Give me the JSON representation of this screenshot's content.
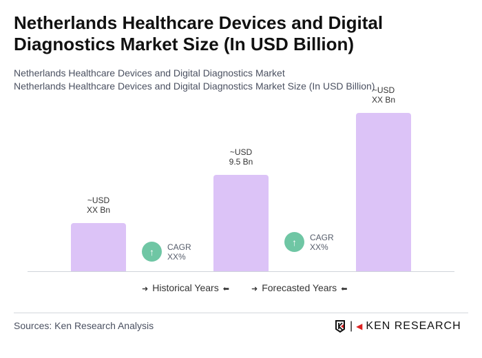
{
  "title": "Netherlands Healthcare Devices and Digital Diagnostics Market Size (In USD Billion)",
  "subtitle_1": "Netherlands Healthcare Devices and Digital Diagnostics Market",
  "subtitle_2": "Netherlands Healthcare Devices and Digital Diagnostics Market Size (In USD Billion)",
  "chart_data": {
    "type": "bar",
    "categories": [
      "",
      "",
      ""
    ],
    "values": [
      4.75,
      9.5,
      15.6
    ],
    "data_labels": [
      {
        "line1": "~USD",
        "line2": "XX Bn"
      },
      {
        "line1": "~USD",
        "line2": "9.5 Bn"
      },
      {
        "line1": "~USD",
        "line2": "XX Bn"
      }
    ],
    "bar_color": "#dcc3f7",
    "cagr": [
      {
        "label": "CAGR",
        "value": "XX%"
      },
      {
        "label": "CAGR",
        "value": "XX%"
      }
    ],
    "cagr_color": "#6fc6a4",
    "legend": [
      "Historical Years",
      "Forecasted Years"
    ],
    "grid": false
  },
  "sources": "Sources: Ken Research Analysis",
  "logo_text": "KEN RESEARCH"
}
